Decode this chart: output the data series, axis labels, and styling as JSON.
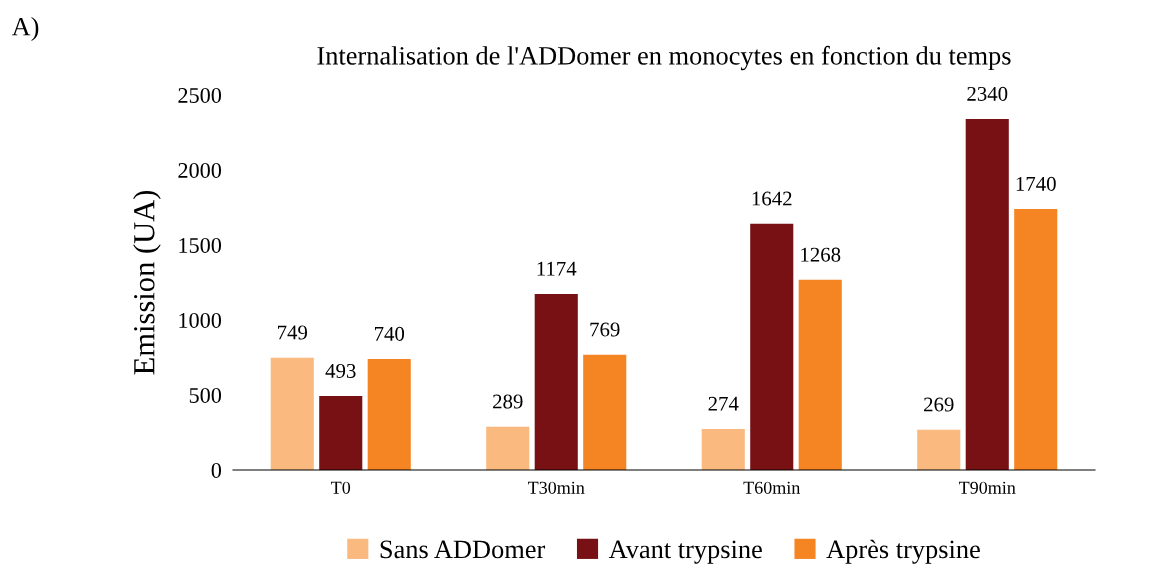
{
  "chart_data": {
    "type": "bar",
    "title": "Internalisation de l'ADDomer en monocytes en fonction du temps",
    "ylabel": "Emission (UA)",
    "categories": [
      "T0",
      "T30min",
      "T60min",
      "T90min"
    ],
    "series": [
      {
        "name": "Sans ADDomer",
        "color": "#f9b97f",
        "values": [
          749,
          289,
          274,
          269
        ]
      },
      {
        "name": "Avant trypsine",
        "color": "#771113",
        "values": [
          493,
          1174,
          1642,
          2340
        ]
      },
      {
        "name": "Après trypsine",
        "color": "#f58423",
        "values": [
          740,
          769,
          1268,
          1740
        ]
      }
    ],
    "ylim": [
      0,
      2500
    ],
    "yticks": [
      0,
      500,
      1000,
      1500,
      2000,
      2500
    ],
    "data_labels": true,
    "grid": false,
    "legend": "bottom",
    "annotations": [
      "A)"
    ]
  }
}
